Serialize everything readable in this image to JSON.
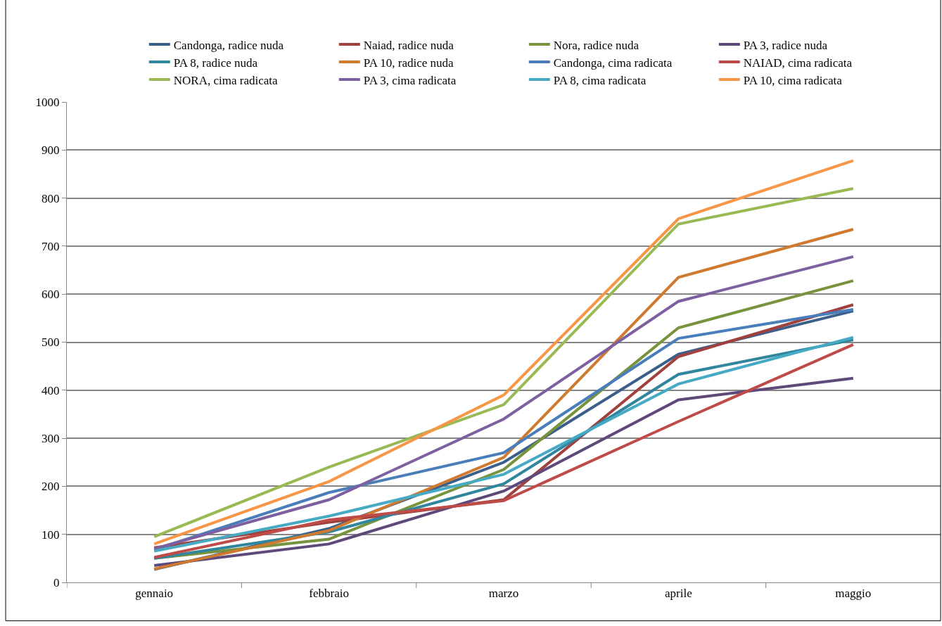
{
  "chart_data": {
    "type": "line",
    "categories": [
      "gennaio",
      "febbraio",
      "marzo",
      "aprile",
      "maggio"
    ],
    "ylim": [
      0,
      1000
    ],
    "yticks": [
      0,
      100,
      200,
      300,
      400,
      500,
      600,
      700,
      800,
      900,
      1000
    ],
    "grid": "y",
    "legend": "top",
    "marker": "none",
    "line_style": "solid",
    "series": [
      {
        "name": "Candonga, radice nuda",
        "color": "#3a5f8b",
        "values": [
          27,
          112,
          250,
          475,
          565
        ]
      },
      {
        "name": "Naiad, radice nuda",
        "color": "#a0413e",
        "values": [
          72,
          125,
          172,
          470,
          578
        ]
      },
      {
        "name": "Nora, radice nuda",
        "color": "#77933c",
        "values": [
          50,
          90,
          235,
          530,
          628
        ]
      },
      {
        "name": "PA 3, radice nuda",
        "color": "#5f497a",
        "values": [
          35,
          80,
          190,
          380,
          425
        ]
      },
      {
        "name": "PA 8, radice nuda",
        "color": "#31859c",
        "values": [
          50,
          105,
          205,
          433,
          505
        ]
      },
      {
        "name": "PA 10, radice nuda",
        "color": "#d07a2f",
        "values": [
          28,
          108,
          260,
          635,
          735
        ]
      },
      {
        "name": "Candonga, cima radicata",
        "color": "#4a7ebb",
        "values": [
          68,
          187,
          270,
          508,
          568
        ]
      },
      {
        "name": "NAIAD, cima radicata",
        "color": "#be4b48",
        "values": [
          52,
          130,
          170,
          335,
          495
        ]
      },
      {
        "name": "NORA, cima radicata",
        "color": "#98b954",
        "values": [
          95,
          240,
          370,
          746,
          820
        ]
      },
      {
        "name": "PA 3, cima radicata",
        "color": "#7d60a0",
        "values": [
          70,
          172,
          340,
          585,
          678
        ]
      },
      {
        "name": "PA 8, cima radicata",
        "color": "#46aac5",
        "values": [
          65,
          138,
          225,
          413,
          510
        ]
      },
      {
        "name": "PA 10, cima radicata",
        "color": "#f79646",
        "values": [
          80,
          210,
          390,
          757,
          878
        ]
      }
    ]
  }
}
